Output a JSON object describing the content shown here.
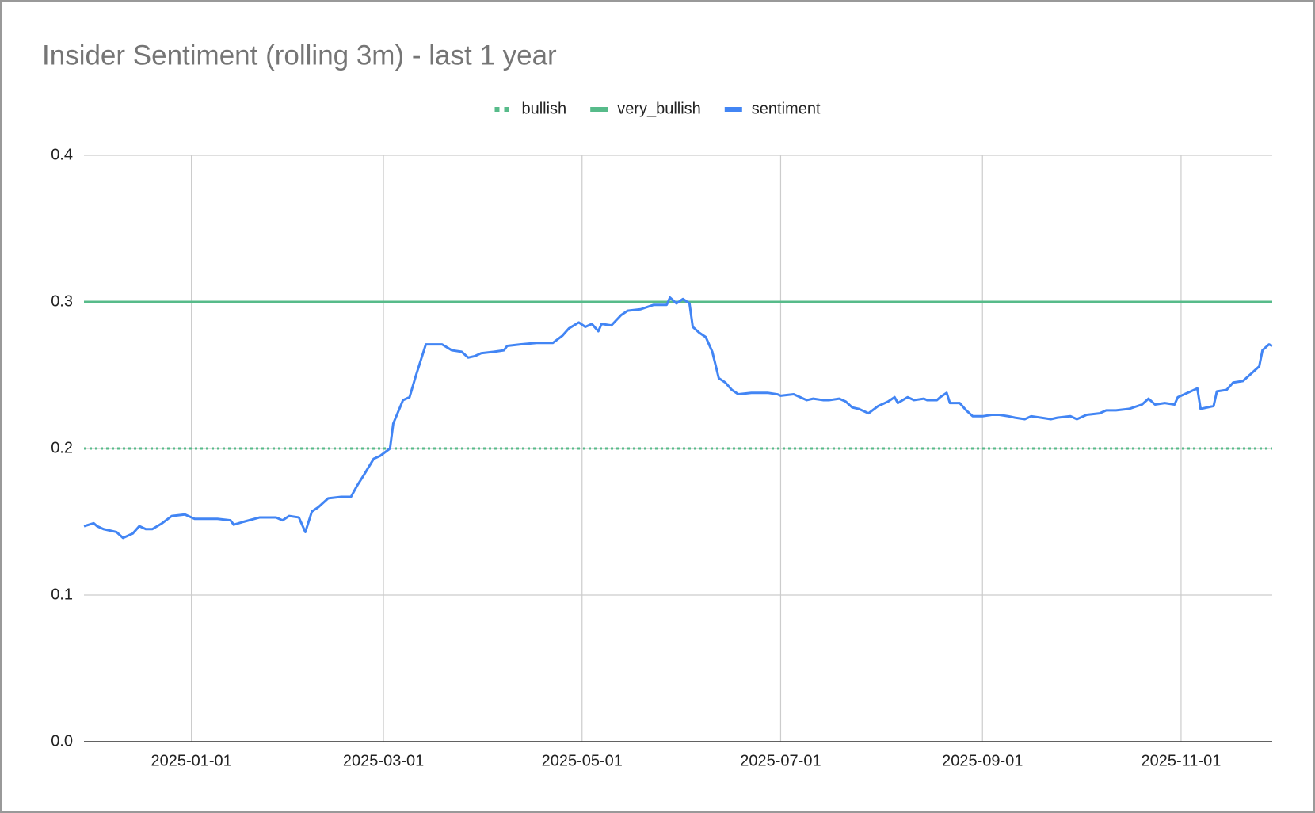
{
  "chart_data": {
    "type": "line",
    "title": "Insider Sentiment (rolling 3m) - last 1 year",
    "xlim": [
      "2024-11-29",
      "2025-11-29"
    ],
    "xticks": [
      "2025-01-01",
      "2025-03-01",
      "2025-05-01",
      "2025-07-01",
      "2025-09-01",
      "2025-11-01"
    ],
    "ylim": [
      0,
      0.4
    ],
    "yticks": [
      {
        "value": 0,
        "label": "0.0"
      },
      0.1,
      0.2,
      0.3,
      0.4
    ],
    "grid": true,
    "legend": "top",
    "series": [
      {
        "name": "bullish",
        "color": "#57bb8a",
        "dash": "dotted",
        "x": [
          "2024-11-29",
          "2025-11-29"
        ],
        "values": [
          0.2,
          0.2
        ]
      },
      {
        "name": "very_bullish",
        "color": "#57bb8a",
        "dash": "solid",
        "x": [
          "2024-11-29",
          "2025-11-29"
        ],
        "values": [
          0.3,
          0.3
        ]
      },
      {
        "name": "sentiment",
        "color": "#4285f4",
        "dash": "solid",
        "x": [
          "2024-11-29",
          "2024-12-02",
          "2024-12-03",
          "2024-12-05",
          "2024-12-09",
          "2024-12-11",
          "2024-12-14",
          "2024-12-16",
          "2024-12-18",
          "2024-12-20",
          "2024-12-23",
          "2024-12-26",
          "2024-12-30",
          "2025-01-02",
          "2025-01-04",
          "2025-01-09",
          "2025-01-13",
          "2025-01-14",
          "2025-01-17",
          "2025-01-22",
          "2025-01-27",
          "2025-01-29",
          "2025-01-31",
          "2025-02-03",
          "2025-02-05",
          "2025-02-07",
          "2025-02-09",
          "2025-02-12",
          "2025-02-16",
          "2025-02-19",
          "2025-02-21",
          "2025-02-23",
          "2025-02-26",
          "2025-02-28",
          "2025-03-03",
          "2025-03-04",
          "2025-03-07",
          "2025-03-09",
          "2025-03-11",
          "2025-03-14",
          "2025-03-17",
          "2025-03-19",
          "2025-03-22",
          "2025-03-25",
          "2025-03-27",
          "2025-03-29",
          "2025-03-31",
          "2025-04-04",
          "2025-04-07",
          "2025-04-08",
          "2025-04-12",
          "2025-04-17",
          "2025-04-22",
          "2025-04-25",
          "2025-04-27",
          "2025-04-30",
          "2025-05-02",
          "2025-05-04",
          "2025-05-06",
          "2025-05-07",
          "2025-05-10",
          "2025-05-13",
          "2025-05-15",
          "2025-05-19",
          "2025-05-23",
          "2025-05-27",
          "2025-05-28",
          "2025-05-30",
          "2025-06-01",
          "2025-06-03",
          "2025-06-04",
          "2025-06-06",
          "2025-06-08",
          "2025-06-10",
          "2025-06-12",
          "2025-06-14",
          "2025-06-16",
          "2025-06-18",
          "2025-06-22",
          "2025-06-24",
          "2025-06-27",
          "2025-06-30",
          "2025-07-01",
          "2025-07-05",
          "2025-07-07",
          "2025-07-09",
          "2025-07-11",
          "2025-07-14",
          "2025-07-16",
          "2025-07-19",
          "2025-07-21",
          "2025-07-23",
          "2025-07-25",
          "2025-07-27",
          "2025-07-28",
          "2025-07-31",
          "2025-08-03",
          "2025-08-05",
          "2025-08-06",
          "2025-08-09",
          "2025-08-11",
          "2025-08-14",
          "2025-08-15",
          "2025-08-18",
          "2025-08-19",
          "2025-08-21",
          "2025-08-22",
          "2025-08-25",
          "2025-08-27",
          "2025-08-29",
          "2025-09-01",
          "2025-09-04",
          "2025-09-06",
          "2025-09-09",
          "2025-09-11",
          "2025-09-14",
          "2025-09-16",
          "2025-09-19",
          "2025-09-22",
          "2025-09-24",
          "2025-09-28",
          "2025-09-30",
          "2025-10-03",
          "2025-10-07",
          "2025-10-09",
          "2025-10-12",
          "2025-10-16",
          "2025-10-20",
          "2025-10-22",
          "2025-10-24",
          "2025-10-27",
          "2025-10-30",
          "2025-10-31",
          "2025-11-04",
          "2025-11-06",
          "2025-11-07",
          "2025-11-11",
          "2025-11-12",
          "2025-11-15",
          "2025-11-17",
          "2025-11-20",
          "2025-11-22",
          "2025-11-25",
          "2025-11-26",
          "2025-11-28",
          "2025-11-29"
        ],
        "values": [
          0.147,
          0.149,
          0.147,
          0.145,
          0.143,
          0.139,
          0.142,
          0.147,
          0.145,
          0.145,
          0.149,
          0.154,
          0.155,
          0.152,
          0.152,
          0.152,
          0.151,
          0.148,
          0.15,
          0.153,
          0.153,
          0.151,
          0.154,
          0.153,
          0.143,
          0.157,
          0.16,
          0.166,
          0.167,
          0.167,
          0.175,
          0.182,
          0.193,
          0.195,
          0.2,
          0.217,
          0.233,
          0.235,
          0.25,
          0.271,
          0.271,
          0.271,
          0.267,
          0.266,
          0.262,
          0.263,
          0.265,
          0.266,
          0.267,
          0.27,
          0.271,
          0.272,
          0.272,
          0.277,
          0.282,
          0.286,
          0.283,
          0.285,
          0.28,
          0.285,
          0.284,
          0.291,
          0.294,
          0.295,
          0.298,
          0.298,
          0.303,
          0.299,
          0.302,
          0.299,
          0.283,
          0.279,
          0.276,
          0.266,
          0.248,
          0.245,
          0.24,
          0.237,
          0.238,
          0.238,
          0.238,
          0.237,
          0.236,
          0.237,
          0.235,
          0.233,
          0.234,
          0.233,
          0.233,
          0.234,
          0.232,
          0.228,
          0.227,
          0.225,
          0.224,
          0.229,
          0.232,
          0.235,
          0.231,
          0.235,
          0.233,
          0.234,
          0.233,
          0.233,
          0.235,
          0.238,
          0.231,
          0.231,
          0.226,
          0.222,
          0.222,
          0.223,
          0.223,
          0.222,
          0.221,
          0.22,
          0.222,
          0.221,
          0.22,
          0.221,
          0.222,
          0.22,
          0.223,
          0.224,
          0.226,
          0.226,
          0.227,
          0.23,
          0.234,
          0.23,
          0.231,
          0.23,
          0.235,
          0.239,
          0.241,
          0.227,
          0.229,
          0.239,
          0.24,
          0.245,
          0.246,
          0.25,
          0.256,
          0.267,
          0.271,
          0.27
        ]
      }
    ]
  }
}
